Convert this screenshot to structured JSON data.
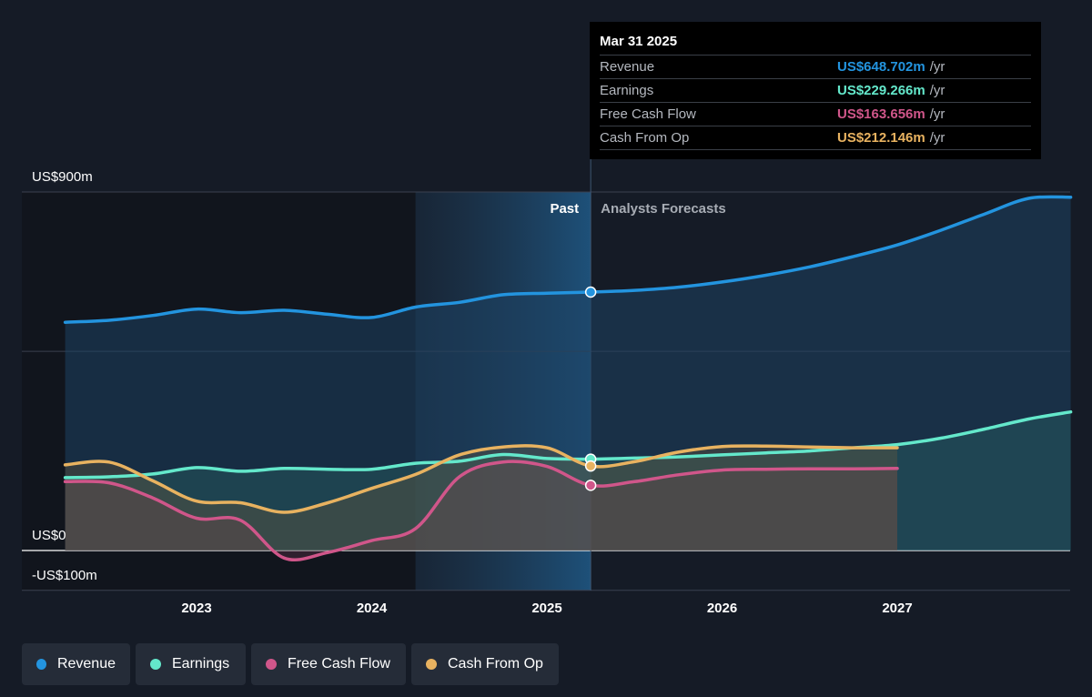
{
  "colors": {
    "background": "#151b26",
    "revenue": "#2394df",
    "earnings": "#64e8cb",
    "free_cash_flow": "#d0568a",
    "cash_from_op": "#e8b260",
    "grid": "#3a4150"
  },
  "tooltip": {
    "date": "Mar 31 2025",
    "unit": "/yr",
    "rows": [
      {
        "label": "Revenue",
        "value": "US$648.702m",
        "color": "#2394df"
      },
      {
        "label": "Earnings",
        "value": "US$229.266m",
        "color": "#64e8cb"
      },
      {
        "label": "Free Cash Flow",
        "value": "US$163.656m",
        "color": "#d0568a"
      },
      {
        "label": "Cash From Op",
        "value": "US$212.146m",
        "color": "#e8b260"
      }
    ]
  },
  "legend": [
    {
      "label": "Revenue",
      "color": "#2394df"
    },
    {
      "label": "Earnings",
      "color": "#64e8cb"
    },
    {
      "label": "Free Cash Flow",
      "color": "#d0568a"
    },
    {
      "label": "Cash From Op",
      "color": "#e8b260"
    }
  ],
  "chart_data": {
    "type": "line",
    "title": "",
    "xlabel": "",
    "ylabel": "",
    "ylim": [
      -100,
      900
    ],
    "xlim": [
      2022.2,
      2027.99
    ],
    "y_tick_labels": [
      {
        "value": 900,
        "label": "US$900m"
      },
      {
        "value": 0,
        "label": "US$0"
      },
      {
        "value": -100,
        "label": "-US$100m"
      }
    ],
    "x_tick_labels": [
      {
        "value": 2023,
        "label": "2023"
      },
      {
        "value": 2024,
        "label": "2024"
      },
      {
        "value": 2025,
        "label": "2025"
      },
      {
        "value": 2026,
        "label": "2026"
      },
      {
        "value": 2027,
        "label": "2027"
      }
    ],
    "gridlines_y": [
      900,
      500,
      0,
      -100
    ],
    "past_label": "Past",
    "forecast_label": "Analysts Forecasts",
    "divider_x": 2025.25,
    "highlight_range": [
      2024.25,
      2025.25
    ],
    "shaded_past_range": [
      2022.25,
      2024.25
    ],
    "series": [
      {
        "name": "Revenue",
        "color": "#2394df",
        "points": [
          [
            2022.25,
            573
          ],
          [
            2022.5,
            578
          ],
          [
            2022.75,
            590
          ],
          [
            2023.0,
            606
          ],
          [
            2023.25,
            597
          ],
          [
            2023.5,
            603
          ],
          [
            2023.75,
            593
          ],
          [
            2024.0,
            585
          ],
          [
            2024.25,
            611
          ],
          [
            2024.5,
            623
          ],
          [
            2024.75,
            642
          ],
          [
            2025.0,
            646
          ],
          [
            2025.25,
            648.7
          ],
          [
            2025.5,
            653
          ],
          [
            2025.75,
            661
          ],
          [
            2026.0,
            674
          ],
          [
            2026.25,
            691
          ],
          [
            2026.5,
            712
          ],
          [
            2026.75,
            738
          ],
          [
            2027.0,
            767
          ],
          [
            2027.25,
            804
          ],
          [
            2027.5,
            845
          ],
          [
            2027.75,
            884
          ],
          [
            2027.99,
            887
          ]
        ]
      },
      {
        "name": "Earnings",
        "color": "#64e8cb",
        "points": [
          [
            2022.25,
            183
          ],
          [
            2022.5,
            185
          ],
          [
            2022.75,
            192
          ],
          [
            2023.0,
            208
          ],
          [
            2023.25,
            199
          ],
          [
            2023.5,
            206
          ],
          [
            2023.75,
            204
          ],
          [
            2024.0,
            204
          ],
          [
            2024.25,
            219
          ],
          [
            2024.5,
            224
          ],
          [
            2024.75,
            241
          ],
          [
            2025.0,
            231
          ],
          [
            2025.25,
            229.3
          ],
          [
            2025.5,
            232
          ],
          [
            2025.75,
            235
          ],
          [
            2026.0,
            240
          ],
          [
            2026.25,
            245
          ],
          [
            2026.5,
            250
          ],
          [
            2026.75,
            258
          ],
          [
            2027.0,
            266
          ],
          [
            2027.25,
            282
          ],
          [
            2027.5,
            305
          ],
          [
            2027.75,
            330
          ],
          [
            2027.99,
            348
          ]
        ]
      },
      {
        "name": "Free Cash Flow",
        "color": "#d0568a",
        "points": [
          [
            2022.25,
            173
          ],
          [
            2022.5,
            170
          ],
          [
            2022.75,
            132
          ],
          [
            2023.0,
            81
          ],
          [
            2023.25,
            76
          ],
          [
            2023.5,
            -19
          ],
          [
            2023.75,
            -5
          ],
          [
            2024.0,
            25
          ],
          [
            2024.25,
            55
          ],
          [
            2024.5,
            185
          ],
          [
            2024.75,
            222
          ],
          [
            2025.0,
            211
          ],
          [
            2025.25,
            163.7
          ],
          [
            2025.5,
            173
          ],
          [
            2025.75,
            190
          ],
          [
            2026.0,
            202
          ],
          [
            2026.25,
            204
          ],
          [
            2026.5,
            205
          ],
          [
            2026.75,
            205
          ],
          [
            2027.0,
            206
          ]
        ]
      },
      {
        "name": "Cash From Op",
        "color": "#e8b260",
        "points": [
          [
            2022.25,
            215
          ],
          [
            2022.5,
            222
          ],
          [
            2022.75,
            175
          ],
          [
            2023.0,
            124
          ],
          [
            2023.25,
            120
          ],
          [
            2023.5,
            96
          ],
          [
            2023.75,
            120
          ],
          [
            2024.0,
            156
          ],
          [
            2024.25,
            191
          ],
          [
            2024.5,
            240
          ],
          [
            2024.75,
            260
          ],
          [
            2025.0,
            258
          ],
          [
            2025.25,
            212.1
          ],
          [
            2025.5,
            223
          ],
          [
            2025.75,
            247
          ],
          [
            2026.0,
            261
          ],
          [
            2026.25,
            262
          ],
          [
            2026.5,
            260
          ],
          [
            2026.75,
            258
          ],
          [
            2027.0,
            258
          ]
        ]
      }
    ]
  }
}
